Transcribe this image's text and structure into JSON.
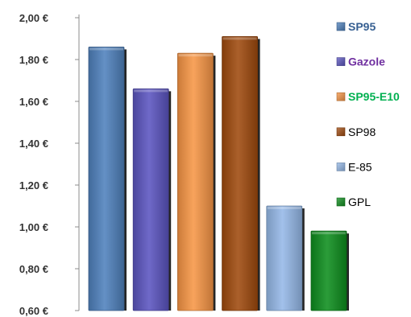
{
  "chart_data": {
    "type": "bar",
    "title": "",
    "xlabel": "",
    "ylabel": "",
    "categories": [
      "SP95",
      "Gazole",
      "SP95-E10",
      "SP98",
      "E-85",
      "GPL"
    ],
    "values": [
      1.86,
      1.66,
      1.83,
      1.91,
      1.1,
      0.98
    ],
    "ylim": [
      0.6,
      2.0
    ],
    "yticks": [
      0.6,
      0.8,
      1.0,
      1.2,
      1.4,
      1.6,
      1.8,
      2.0
    ],
    "ytick_labels": [
      "0,60 €",
      "0,80 €",
      "1,00 €",
      "1,20 €",
      "1,40 €",
      "1,60 €",
      "1,80 €",
      "2,00 €"
    ],
    "grid": false,
    "legend_position": "right",
    "series": [
      {
        "name": "SP95",
        "value": 1.86,
        "color": "#4F81BD",
        "legend_color": "#376092",
        "legend_bold": true
      },
      {
        "name": "Gazole",
        "value": 1.66,
        "color": "#5B55C0",
        "legend_color": "#7030A0",
        "legend_bold": true
      },
      {
        "name": "SP95-E10",
        "value": 1.83,
        "color": "#F79646",
        "legend_color": "#00B050",
        "legend_bold": true
      },
      {
        "name": "SP98",
        "value": 1.91,
        "color": "#A04A0E",
        "legend_color": "#000000",
        "legend_bold": false
      },
      {
        "name": "E-85",
        "value": 1.1,
        "color": "#95B9E8",
        "legend_color": "#000000",
        "legend_bold": false
      },
      {
        "name": "GPL",
        "value": 0.98,
        "color": "#0E8E1E",
        "legend_color": "#000000",
        "legend_bold": false
      }
    ]
  }
}
